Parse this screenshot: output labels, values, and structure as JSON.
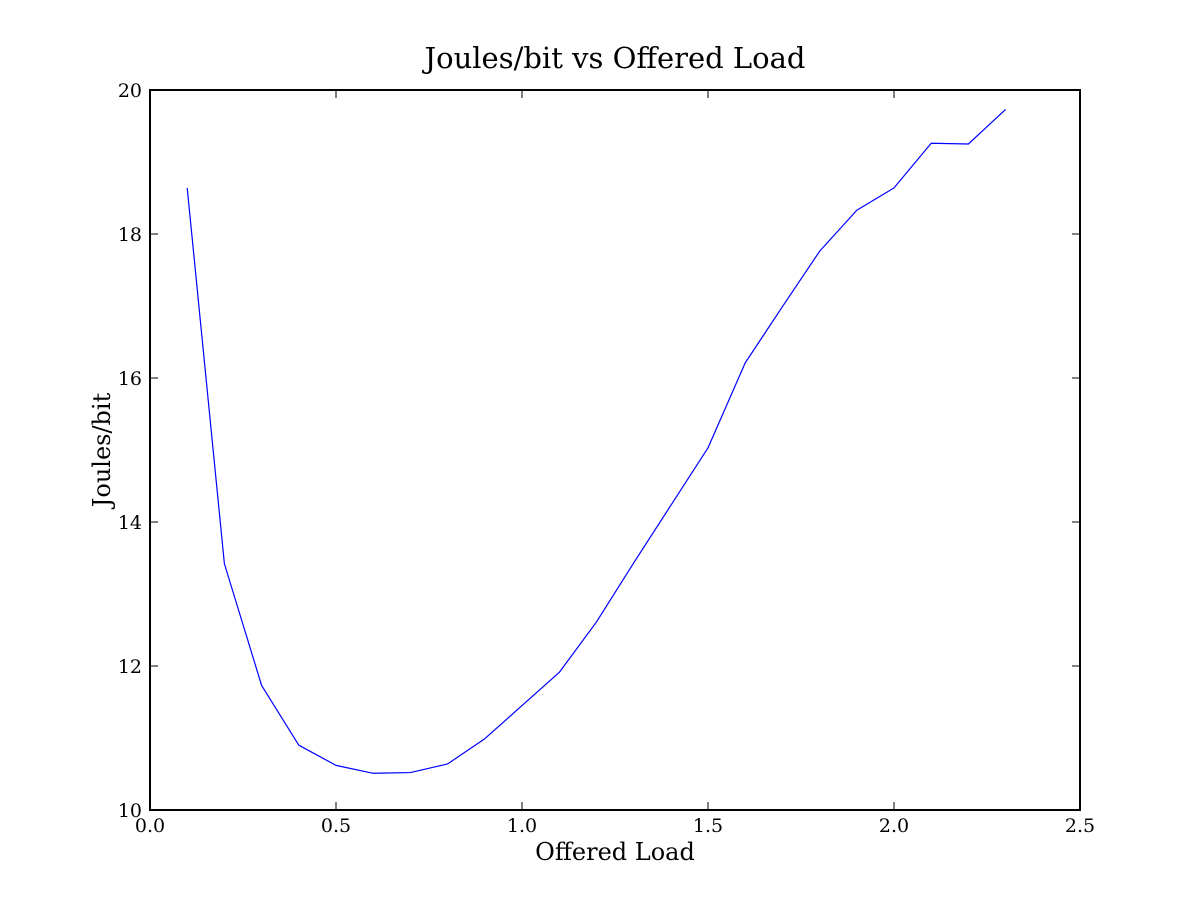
{
  "chart_data": {
    "type": "line",
    "title": "Joules/bit vs Offered Load",
    "xlabel": "Offered Load",
    "ylabel": "Joules/bit",
    "xlim": [
      0.0,
      2.5
    ],
    "ylim": [
      10,
      20
    ],
    "x_ticks": [
      0.0,
      0.5,
      1.0,
      1.5,
      2.0,
      2.5
    ],
    "x_tick_labels": [
      "0.0",
      "0.5",
      "1.0",
      "1.5",
      "2.0",
      "2.5"
    ],
    "y_ticks": [
      10,
      12,
      14,
      16,
      18,
      20
    ],
    "y_tick_labels": [
      "10",
      "12",
      "14",
      "16",
      "18",
      "20"
    ],
    "grid": false,
    "legend": "none",
    "series": [
      {
        "color": "#0000ff",
        "x": [
          0.1,
          0.2,
          0.3,
          0.4,
          0.5,
          0.6,
          0.7,
          0.8,
          0.9,
          1.0,
          1.1,
          1.2,
          1.3,
          1.4,
          1.5,
          1.6,
          1.7,
          1.8,
          1.9,
          2.0,
          2.1,
          2.2,
          2.3
        ],
        "y": [
          18.64,
          13.42,
          11.73,
          10.9,
          10.62,
          10.51,
          10.52,
          10.64,
          10.99,
          11.45,
          11.91,
          12.61,
          13.43,
          14.23,
          15.03,
          16.21,
          16.99,
          17.76,
          18.33,
          18.64,
          19.26,
          19.25,
          19.73
        ]
      }
    ]
  }
}
